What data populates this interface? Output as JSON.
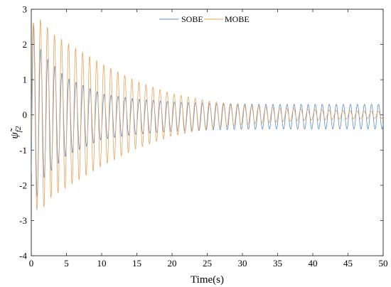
{
  "chart_data": {
    "type": "line",
    "title": "",
    "xlabel": "Time(s)",
    "ylabel": "ψ̃_f2",
    "ylabel_main": "ψ̃",
    "ylabel_sub": "f2",
    "xlim": [
      0,
      50
    ],
    "ylim": [
      -4,
      3
    ],
    "xticks": [
      "0",
      "5",
      "10",
      "15",
      "20",
      "25",
      "30",
      "35",
      "40",
      "45",
      "50"
    ],
    "yticks": [
      "-4",
      "-3",
      "-2",
      "-1",
      "0",
      "1",
      "2",
      "3"
    ],
    "grid": false,
    "legend_position": "top-center",
    "series": [
      {
        "name": "SOBE",
        "color": "#5b8ec9",
        "style": "decaying-oscillation",
        "period_s": 1.0,
        "envelope_t": [
          0,
          0.5,
          1.5,
          5,
          10,
          15,
          20,
          25,
          30,
          35,
          40,
          45,
          50
        ],
        "envelope_amp": [
          2.8,
          2.5,
          1.8,
          1.1,
          0.65,
          0.5,
          0.42,
          0.38,
          0.36,
          0.35,
          0.35,
          0.35,
          0.35
        ],
        "offset": -0.05
      },
      {
        "name": "MOBE",
        "color": "#e8a35a",
        "style": "decaying-oscillation",
        "period_s": 1.0,
        "envelope_t": [
          0,
          0.5,
          1.5,
          3,
          5,
          10,
          15,
          20,
          25,
          30,
          35,
          40,
          45,
          50
        ],
        "envelope_amp": [
          2.5,
          2.7,
          2.7,
          2.3,
          2.05,
          1.45,
          0.95,
          0.6,
          0.4,
          0.28,
          0.2,
          0.15,
          0.12,
          0.1
        ],
        "offset": 0.0
      }
    ]
  }
}
